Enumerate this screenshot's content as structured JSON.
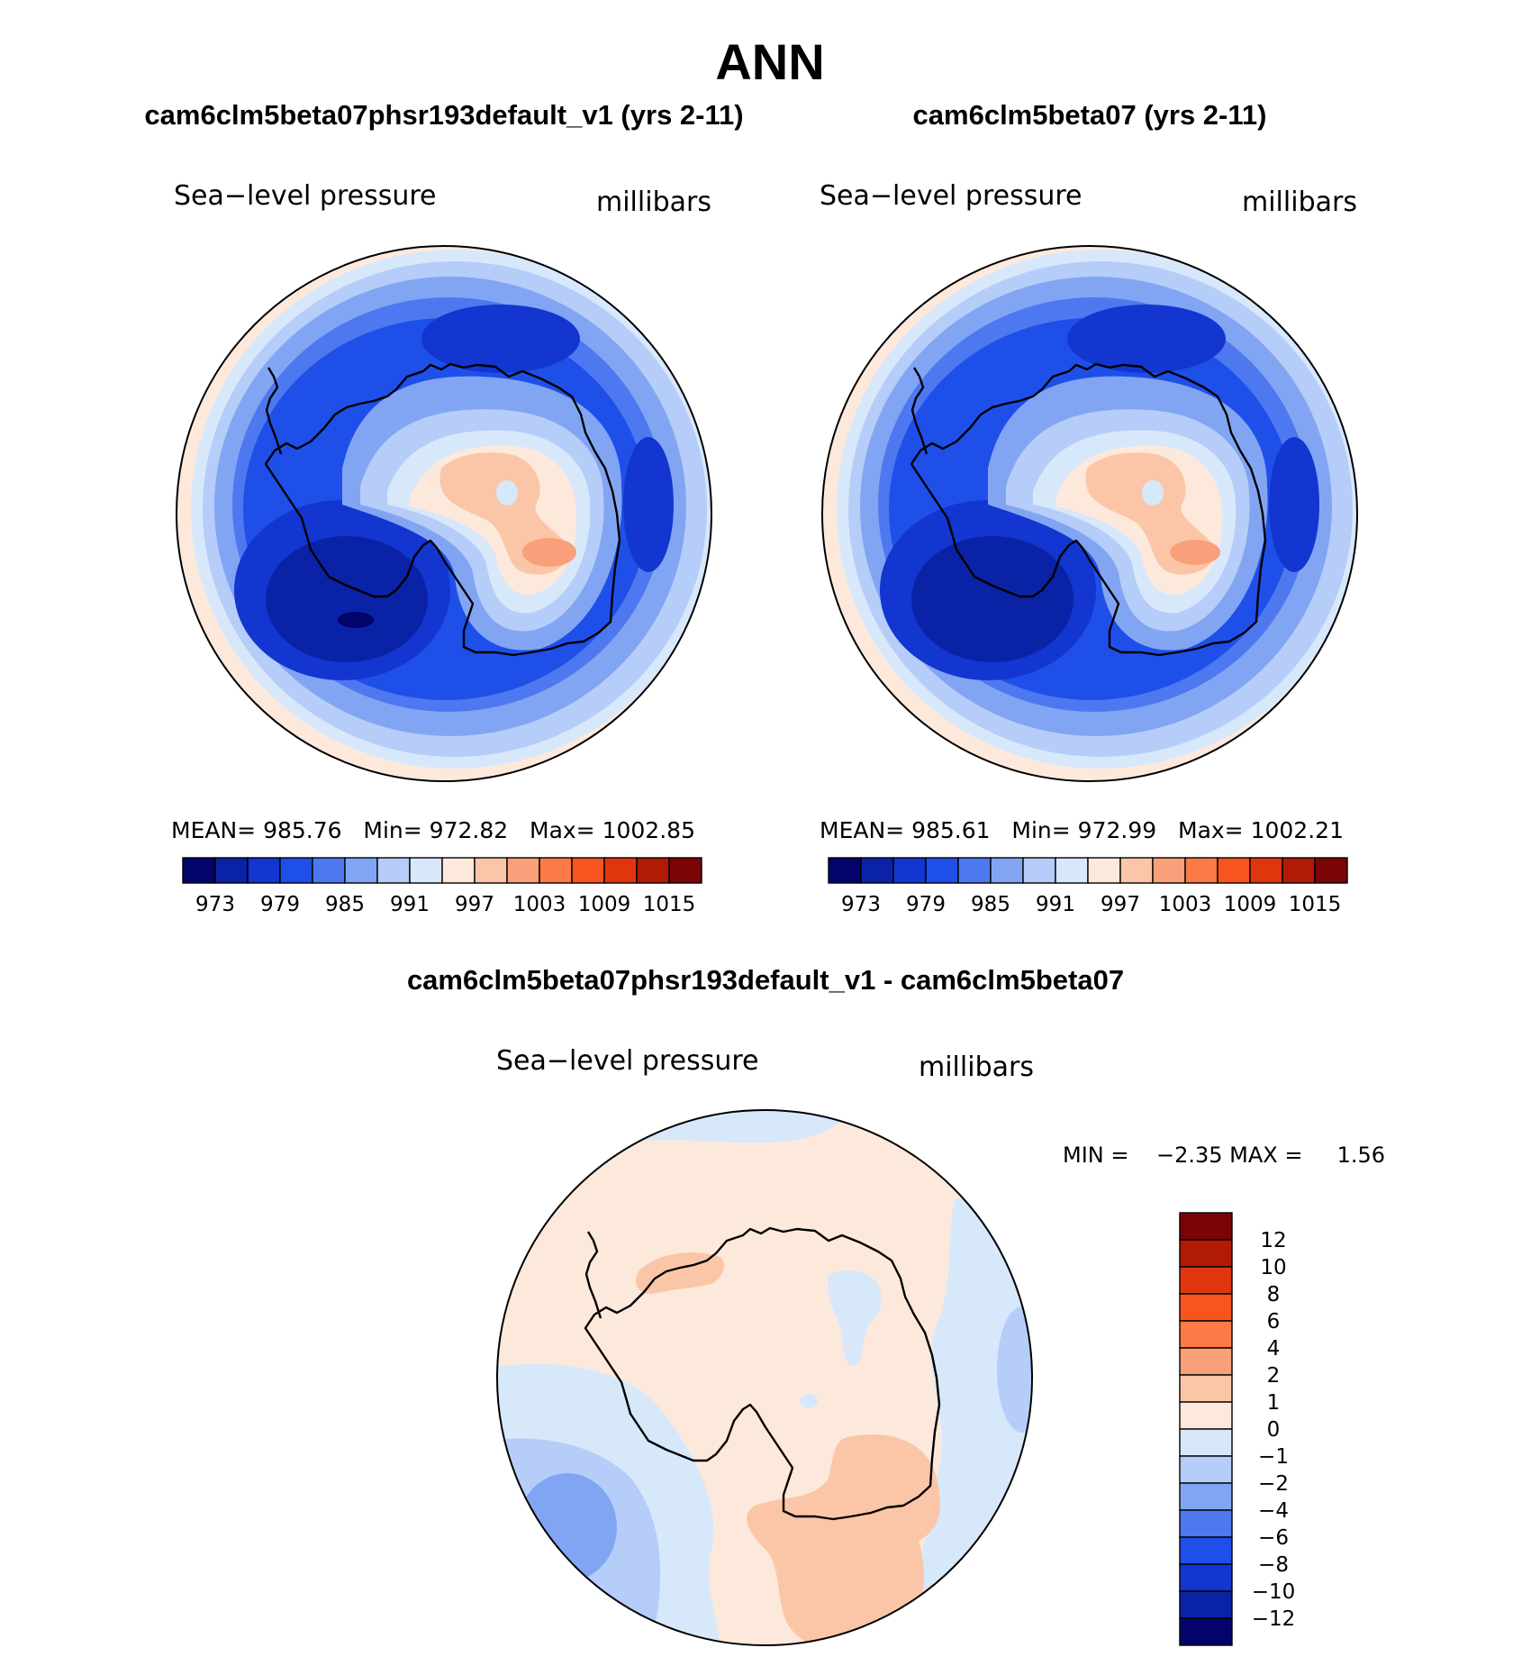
{
  "figure": {
    "title": "ANN",
    "diff_title": "cam6clm5beta07phsr193default_v1 - cam6clm5beta07"
  },
  "panels": [
    {
      "case_title": "cam6clm5beta07phsr193default_v1 (yrs 2-11)",
      "variable": "Sea−level pressure",
      "units": "millibars",
      "stats": {
        "mean_label": "MEAN=",
        "mean": "985.76",
        "min_label": "Min=",
        "min": "972.82",
        "max_label": "Max=",
        "max": "1002.85"
      }
    },
    {
      "case_title": "cam6clm5beta07 (yrs 2-11)",
      "variable": "Sea−level pressure",
      "units": "millibars",
      "stats": {
        "mean_label": "MEAN=",
        "mean": "985.61",
        "min_label": "Min=",
        "min": "972.99",
        "max_label": "Max=",
        "max": "1002.21"
      }
    }
  ],
  "diff_panel": {
    "variable": "Sea−level pressure",
    "units": "millibars",
    "minmax": "MIN =    −2.35 MAX =     1.56"
  },
  "colorbar_abs": {
    "colors": [
      "#02046a",
      "#0a22a6",
      "#1236cf",
      "#1f4fe9",
      "#4e78ef",
      "#82a5f3",
      "#b5cdf8",
      "#d8e8fb",
      "#fde9dc",
      "#fbc6a8",
      "#f9a07a",
      "#fb7a45",
      "#f7551f",
      "#e0360e",
      "#b11a05",
      "#7c0306"
    ],
    "labels": [
      "973",
      "979",
      "985",
      "991",
      "997",
      "1003",
      "1009",
      "1015"
    ]
  },
  "colorbar_diff": {
    "colors": [
      "#7c0306",
      "#b11a05",
      "#e0360e",
      "#f7551f",
      "#fb7a45",
      "#f9a07a",
      "#fbc6a8",
      "#fde9dc",
      "#d8e8fb",
      "#b5cdf8",
      "#82a5f3",
      "#4e78ef",
      "#1f4fe9",
      "#1236cf",
      "#0a22a6",
      "#02046a"
    ],
    "labels": [
      "12",
      "10",
      "8",
      "6",
      "4",
      "2",
      "1",
      "0",
      "−1",
      "−2",
      "−4",
      "−6",
      "−8",
      "−10",
      "−12"
    ]
  },
  "chart_data": [
    {
      "type": "heatmap",
      "title": "cam6clm5beta07phsr193default_v1 (yrs 2-11)",
      "field": "Sea-level pressure",
      "units": "millibars",
      "projection": "south polar stereographic",
      "mean": 985.76,
      "min": 972.82,
      "max": 1002.85,
      "contour_levels": [
        973,
        976,
        979,
        982,
        985,
        988,
        991,
        994,
        997,
        1000,
        1003,
        1006,
        1009,
        1012,
        1015
      ]
    },
    {
      "type": "heatmap",
      "title": "cam6clm5beta07 (yrs 2-11)",
      "field": "Sea-level pressure",
      "units": "millibars",
      "projection": "south polar stereographic",
      "mean": 985.61,
      "min": 972.99,
      "max": 1002.21,
      "contour_levels": [
        973,
        976,
        979,
        982,
        985,
        988,
        991,
        994,
        997,
        1000,
        1003,
        1006,
        1009,
        1012,
        1015
      ]
    },
    {
      "type": "heatmap",
      "title": "cam6clm5beta07phsr193default_v1 - cam6clm5beta07",
      "field": "Sea-level pressure",
      "units": "millibars",
      "projection": "south polar stereographic",
      "min": -2.35,
      "max": 1.56,
      "contour_levels": [
        -12,
        -10,
        -8,
        -6,
        -4,
        -2,
        -1,
        0,
        1,
        2,
        4,
        6,
        8,
        10,
        12
      ]
    }
  ]
}
